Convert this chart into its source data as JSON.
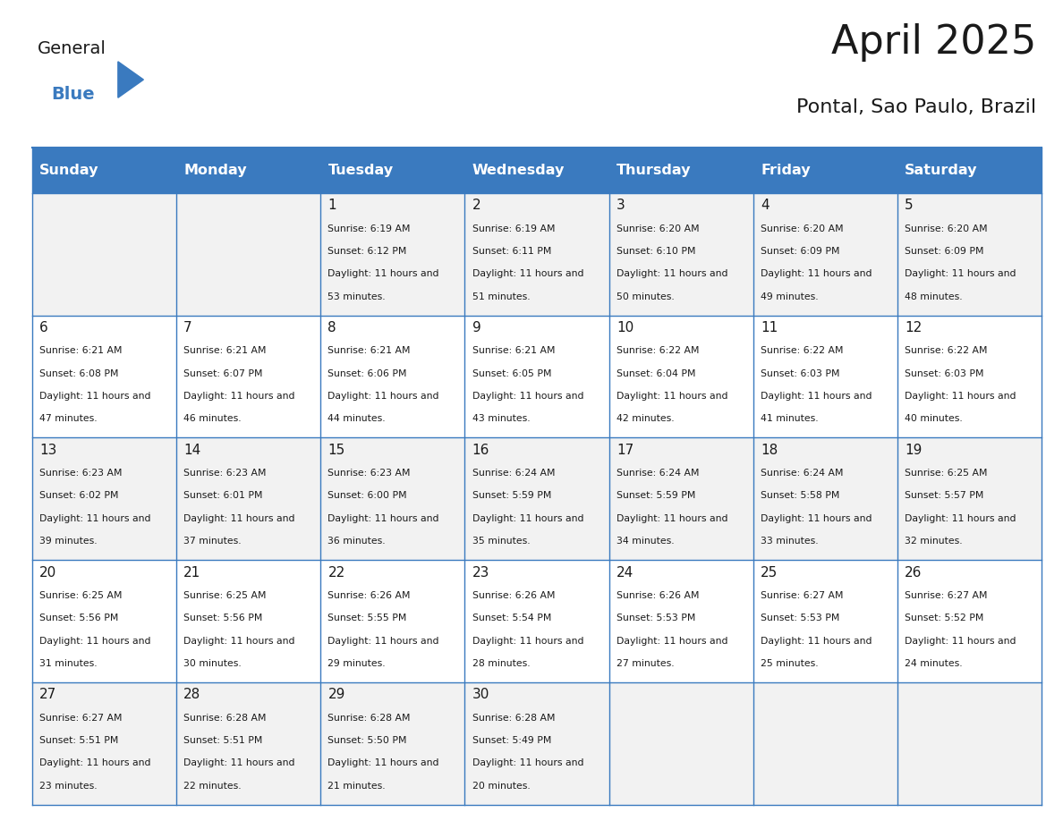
{
  "title": "April 2025",
  "subtitle": "Pontal, Sao Paulo, Brazil",
  "header_bg": "#3a7abf",
  "header_text": "#ffffff",
  "row_bg_odd": "#f2f2f2",
  "row_bg_even": "#ffffff",
  "cell_border": "#3a7abf",
  "day_names": [
    "Sunday",
    "Monday",
    "Tuesday",
    "Wednesday",
    "Thursday",
    "Friday",
    "Saturday"
  ],
  "days": [
    {
      "day": 1,
      "col": 2,
      "row": 0,
      "sunrise": "6:19 AM",
      "sunset": "6:12 PM",
      "daylight": "11 hours and 53 minutes."
    },
    {
      "day": 2,
      "col": 3,
      "row": 0,
      "sunrise": "6:19 AM",
      "sunset": "6:11 PM",
      "daylight": "11 hours and 51 minutes."
    },
    {
      "day": 3,
      "col": 4,
      "row": 0,
      "sunrise": "6:20 AM",
      "sunset": "6:10 PM",
      "daylight": "11 hours and 50 minutes."
    },
    {
      "day": 4,
      "col": 5,
      "row": 0,
      "sunrise": "6:20 AM",
      "sunset": "6:09 PM",
      "daylight": "11 hours and 49 minutes."
    },
    {
      "day": 5,
      "col": 6,
      "row": 0,
      "sunrise": "6:20 AM",
      "sunset": "6:09 PM",
      "daylight": "11 hours and 48 minutes."
    },
    {
      "day": 6,
      "col": 0,
      "row": 1,
      "sunrise": "6:21 AM",
      "sunset": "6:08 PM",
      "daylight": "11 hours and 47 minutes."
    },
    {
      "day": 7,
      "col": 1,
      "row": 1,
      "sunrise": "6:21 AM",
      "sunset": "6:07 PM",
      "daylight": "11 hours and 46 minutes."
    },
    {
      "day": 8,
      "col": 2,
      "row": 1,
      "sunrise": "6:21 AM",
      "sunset": "6:06 PM",
      "daylight": "11 hours and 44 minutes."
    },
    {
      "day": 9,
      "col": 3,
      "row": 1,
      "sunrise": "6:21 AM",
      "sunset": "6:05 PM",
      "daylight": "11 hours and 43 minutes."
    },
    {
      "day": 10,
      "col": 4,
      "row": 1,
      "sunrise": "6:22 AM",
      "sunset": "6:04 PM",
      "daylight": "11 hours and 42 minutes."
    },
    {
      "day": 11,
      "col": 5,
      "row": 1,
      "sunrise": "6:22 AM",
      "sunset": "6:03 PM",
      "daylight": "11 hours and 41 minutes."
    },
    {
      "day": 12,
      "col": 6,
      "row": 1,
      "sunrise": "6:22 AM",
      "sunset": "6:03 PM",
      "daylight": "11 hours and 40 minutes."
    },
    {
      "day": 13,
      "col": 0,
      "row": 2,
      "sunrise": "6:23 AM",
      "sunset": "6:02 PM",
      "daylight": "11 hours and 39 minutes."
    },
    {
      "day": 14,
      "col": 1,
      "row": 2,
      "sunrise": "6:23 AM",
      "sunset": "6:01 PM",
      "daylight": "11 hours and 37 minutes."
    },
    {
      "day": 15,
      "col": 2,
      "row": 2,
      "sunrise": "6:23 AM",
      "sunset": "6:00 PM",
      "daylight": "11 hours and 36 minutes."
    },
    {
      "day": 16,
      "col": 3,
      "row": 2,
      "sunrise": "6:24 AM",
      "sunset": "5:59 PM",
      "daylight": "11 hours and 35 minutes."
    },
    {
      "day": 17,
      "col": 4,
      "row": 2,
      "sunrise": "6:24 AM",
      "sunset": "5:59 PM",
      "daylight": "11 hours and 34 minutes."
    },
    {
      "day": 18,
      "col": 5,
      "row": 2,
      "sunrise": "6:24 AM",
      "sunset": "5:58 PM",
      "daylight": "11 hours and 33 minutes."
    },
    {
      "day": 19,
      "col": 6,
      "row": 2,
      "sunrise": "6:25 AM",
      "sunset": "5:57 PM",
      "daylight": "11 hours and 32 minutes."
    },
    {
      "day": 20,
      "col": 0,
      "row": 3,
      "sunrise": "6:25 AM",
      "sunset": "5:56 PM",
      "daylight": "11 hours and 31 minutes."
    },
    {
      "day": 21,
      "col": 1,
      "row": 3,
      "sunrise": "6:25 AM",
      "sunset": "5:56 PM",
      "daylight": "11 hours and 30 minutes."
    },
    {
      "day": 22,
      "col": 2,
      "row": 3,
      "sunrise": "6:26 AM",
      "sunset": "5:55 PM",
      "daylight": "11 hours and 29 minutes."
    },
    {
      "day": 23,
      "col": 3,
      "row": 3,
      "sunrise": "6:26 AM",
      "sunset": "5:54 PM",
      "daylight": "11 hours and 28 minutes."
    },
    {
      "day": 24,
      "col": 4,
      "row": 3,
      "sunrise": "6:26 AM",
      "sunset": "5:53 PM",
      "daylight": "11 hours and 27 minutes."
    },
    {
      "day": 25,
      "col": 5,
      "row": 3,
      "sunrise": "6:27 AM",
      "sunset": "5:53 PM",
      "daylight": "11 hours and 25 minutes."
    },
    {
      "day": 26,
      "col": 6,
      "row": 3,
      "sunrise": "6:27 AM",
      "sunset": "5:52 PM",
      "daylight": "11 hours and 24 minutes."
    },
    {
      "day": 27,
      "col": 0,
      "row": 4,
      "sunrise": "6:27 AM",
      "sunset": "5:51 PM",
      "daylight": "11 hours and 23 minutes."
    },
    {
      "day": 28,
      "col": 1,
      "row": 4,
      "sunrise": "6:28 AM",
      "sunset": "5:51 PM",
      "daylight": "11 hours and 22 minutes."
    },
    {
      "day": 29,
      "col": 2,
      "row": 4,
      "sunrise": "6:28 AM",
      "sunset": "5:50 PM",
      "daylight": "11 hours and 21 minutes."
    },
    {
      "day": 30,
      "col": 3,
      "row": 4,
      "sunrise": "6:28 AM",
      "sunset": "5:49 PM",
      "daylight": "11 hours and 20 minutes."
    }
  ],
  "logo_text1": "General",
  "logo_text2": "Blue",
  "logo_color1": "#1a1a1a",
  "logo_color2": "#3a7abf",
  "logo_triangle_color": "#3a7abf"
}
